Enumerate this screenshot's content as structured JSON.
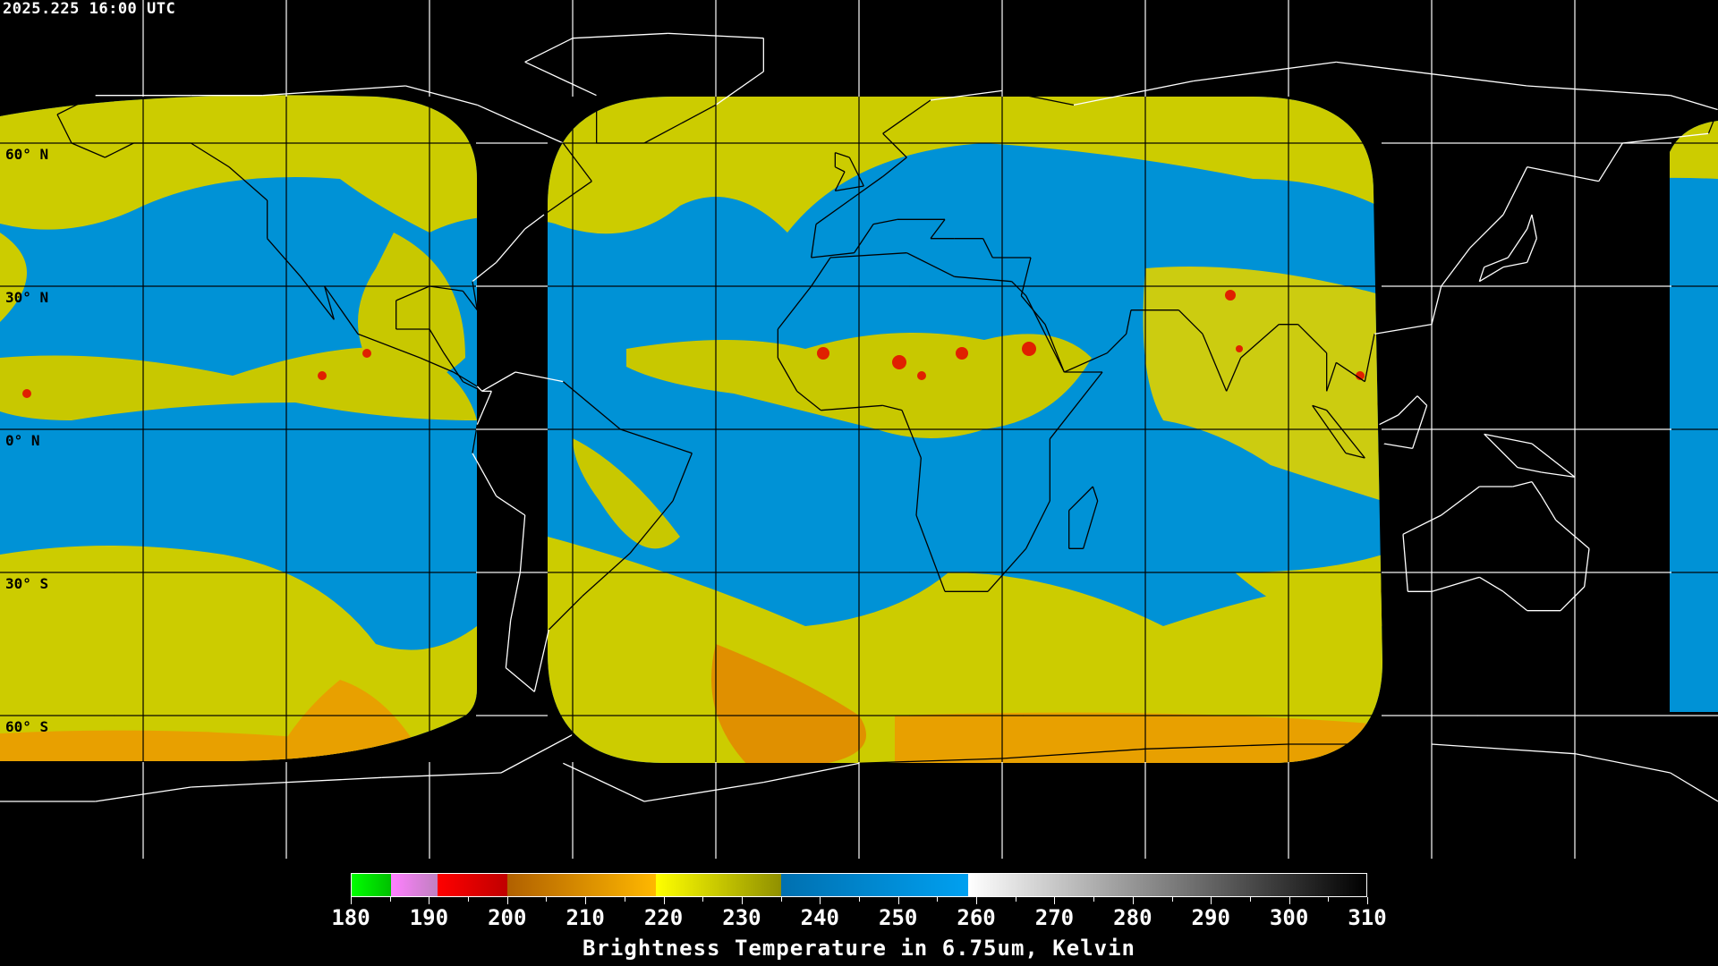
{
  "header": {
    "timestamp": "2025.225 16:00 UTC"
  },
  "map": {
    "projection": "equirectangular",
    "lon_range": [
      -180,
      180
    ],
    "lat_range": [
      -90,
      90
    ],
    "grid_spacing_deg": 30,
    "lat_labels": [
      "60° N",
      "30° N",
      "0° N",
      "30° S",
      "60° S"
    ],
    "background_color": "#000000",
    "coastline_color_on_black": "#ffffff",
    "coastline_color_on_imagery": "#000000",
    "imagery_colors": {
      "cold_cloud": "#d8d800",
      "moist": "#c8c810",
      "dry": "#0092d6",
      "very_cold": "#e8a000",
      "convective": "#e02000"
    }
  },
  "colorbar": {
    "title": "Brightness Temperature in 6.75um, Kelvin",
    "range": [
      180,
      310
    ],
    "ticks": [
      "180",
      "190",
      "200",
      "210",
      "220",
      "230",
      "240",
      "250",
      "260",
      "270",
      "280",
      "290",
      "300",
      "310"
    ],
    "segments": [
      {
        "from": 180,
        "to": 185,
        "start": "#00ff00",
        "end": "#00c000"
      },
      {
        "from": 185,
        "to": 191,
        "start": "#ff80ff",
        "end": "#c080c0"
      },
      {
        "from": 191,
        "to": 200,
        "start": "#ff0000",
        "end": "#c00000"
      },
      {
        "from": 200,
        "to": 219,
        "start": "#b06000",
        "end": "#ffb800"
      },
      {
        "from": 219,
        "to": 235,
        "start": "#ffff00",
        "end": "#909000"
      },
      {
        "from": 235,
        "to": 259,
        "start": "#0070b0",
        "end": "#00a0f0"
      },
      {
        "from": 259,
        "to": 310,
        "start": "#ffffff",
        "end": "#000000"
      }
    ]
  }
}
